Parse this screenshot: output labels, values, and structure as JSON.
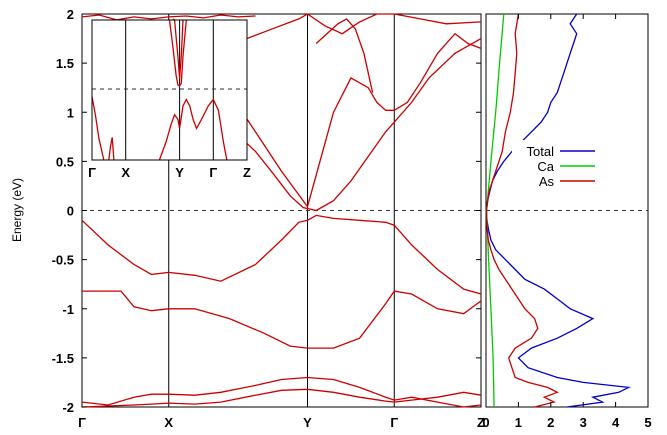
{
  "chart_data": [
    {
      "type": "line",
      "panel": "band-structure",
      "ylabel": "Energy (eV)",
      "ylim": [
        -2,
        2
      ],
      "y_ticks": [
        "-2",
        "-1.5",
        "-1",
        "-0.5",
        "0",
        "0.5",
        "1",
        "1.5",
        "2"
      ],
      "k_points": [
        {
          "label": "Γ",
          "k": 0
        },
        {
          "label": "X",
          "k": 1.0
        },
        {
          "label": "Y",
          "k": 2.6
        },
        {
          "label": "Γ",
          "k": 3.6
        },
        {
          "label": "Z",
          "k": 4.6
        }
      ],
      "fermi_level": 0,
      "grid": false,
      "line_color": "#cc0000",
      "bands": [
        {
          "name": "",
          "x": [
            0,
            0.3,
            0.6,
            0.8,
            1.0,
            1.3,
            1.6,
            2.0,
            2.3,
            2.5,
            2.6,
            2.7,
            2.9,
            3.2,
            3.5,
            3.6,
            3.8,
            4.1,
            4.4,
            4.6
          ],
          "y": [
            -0.1,
            -0.35,
            -0.55,
            -0.65,
            -0.63,
            -0.66,
            -0.72,
            -0.55,
            -0.3,
            -0.12,
            -0.1,
            -0.05,
            -0.08,
            -0.1,
            -0.12,
            -0.15,
            -0.35,
            -0.6,
            -0.8,
            -0.85
          ]
        },
        {
          "name": "",
          "x": [
            0,
            0.3,
            0.45,
            0.6,
            0.8,
            1.0,
            1.3,
            1.7,
            2.1,
            2.4,
            2.6,
            2.9,
            3.2,
            3.5,
            3.6,
            3.8,
            4.1,
            4.4,
            4.6
          ],
          "y": [
            -0.82,
            -0.82,
            -0.82,
            -0.98,
            -1.02,
            -1.0,
            -1.0,
            -1.1,
            -1.25,
            -1.38,
            -1.4,
            -1.4,
            -1.3,
            -0.95,
            -0.82,
            -0.85,
            -1.0,
            -1.05,
            -0.92
          ]
        },
        {
          "name": "",
          "x": [
            0,
            0.3,
            0.6,
            0.8,
            1.0,
            1.3,
            1.6,
            2.0,
            2.3,
            2.6,
            2.9,
            3.2,
            3.5,
            3.6,
            3.8,
            4.1,
            4.4,
            4.6
          ],
          "y": [
            -1.95,
            -1.98,
            -1.9,
            -1.87,
            -1.87,
            -1.88,
            -1.85,
            -1.78,
            -1.72,
            -1.7,
            -1.72,
            -1.8,
            -1.9,
            -1.93,
            -1.9,
            -1.95,
            -2.0,
            -1.98
          ]
        },
        {
          "name": "",
          "x": [
            0,
            0.3,
            0.6,
            0.8,
            1.0,
            1.3,
            1.6,
            2.0,
            2.3,
            2.6,
            2.9,
            3.2,
            3.5,
            3.6,
            3.8,
            4.1,
            4.4,
            4.6
          ],
          "y": [
            -2.0,
            -1.99,
            -1.98,
            -1.97,
            -1.96,
            -1.97,
            -1.95,
            -1.88,
            -1.83,
            -1.82,
            -1.85,
            -1.9,
            -1.94,
            -1.95,
            -1.93,
            -1.9,
            -1.85,
            -1.88
          ]
        },
        {
          "name": "",
          "x": [
            0.95,
            1.15,
            1.4,
            1.7,
            2.0,
            2.2,
            2.4,
            2.55,
            2.6,
            2.7,
            2.9,
            3.1,
            3.3,
            3.5,
            3.6,
            3.8,
            4.0,
            4.3,
            4.6
          ],
          "y": [
            1.6,
            1.3,
            1.1,
            0.85,
            0.6,
            0.38,
            0.15,
            0.03,
            0.02,
            0.0,
            0.1,
            0.3,
            0.55,
            0.8,
            0.9,
            1.1,
            1.35,
            1.6,
            1.75
          ]
        },
        {
          "name": "",
          "x": [
            1.05,
            1.2,
            1.4,
            1.7,
            2.0,
            2.3,
            2.6,
            2.9,
            3.1,
            3.3,
            3.4,
            3.5,
            3.6,
            3.75,
            3.9,
            4.1,
            4.3,
            4.45,
            4.6
          ],
          "y": [
            1.95,
            1.85,
            1.55,
            1.2,
            0.8,
            0.4,
            0.04,
            1.0,
            1.35,
            1.25,
            1.1,
            1.02,
            1.02,
            1.1,
            1.3,
            1.6,
            1.8,
            1.7,
            1.65
          ]
        },
        {
          "name": "",
          "x": [
            1.0,
            1.3,
            1.6,
            1.9,
            2.2,
            2.5,
            2.6,
            2.8,
            3.0,
            3.2,
            3.4,
            3.6,
            3.9,
            4.2,
            4.6
          ],
          "y": [
            1.9,
            1.78,
            1.7,
            1.75,
            1.85,
            1.95,
            2.0,
            1.88,
            1.8,
            1.92,
            2.0,
            2.0,
            1.95,
            1.9,
            1.92
          ]
        },
        {
          "name": "",
          "x": [
            0,
            0.2,
            0.4,
            0.6,
            0.8,
            1.0,
            1.2,
            1.4,
            1.6,
            1.8,
            2.0
          ],
          "y": [
            1.97,
            1.99,
            1.94,
            1.97,
            1.95,
            1.97,
            1.98,
            1.96,
            1.99,
            1.97,
            1.98
          ]
        },
        {
          "name": "",
          "x": [
            2.7,
            2.95,
            3.05,
            3.15,
            3.25,
            3.35
          ],
          "y": [
            1.7,
            1.9,
            1.95,
            1.85,
            1.6,
            1.2
          ]
        }
      ]
    },
    {
      "type": "line",
      "panel": "inset",
      "k_points": [
        {
          "label": "Γ",
          "k": 0
        },
        {
          "label": "X",
          "k": 1.0
        },
        {
          "label": "Y",
          "k": 2.6
        },
        {
          "label": "Γ",
          "k": 3.6
        },
        {
          "label": "Z",
          "k": 4.6
        }
      ],
      "ylim": [
        -0.55,
        1.0
      ],
      "fermi_level": 0,
      "line_color": "#cc0000",
      "bands": [
        {
          "name": "",
          "x": [
            0,
            0.1,
            0.2,
            0.35
          ],
          "y": [
            0.15,
            -0.05,
            -0.3,
            -0.55
          ]
        },
        {
          "name": "",
          "x": [
            0.5,
            0.55,
            0.6,
            0.65
          ],
          "y": [
            -0.55,
            -0.4,
            -0.3,
            -0.55
          ]
        },
        {
          "name": "",
          "x": [
            2.0,
            2.2,
            2.35,
            2.45,
            2.55,
            2.6,
            2.7,
            2.8,
            2.9,
            3.0,
            3.1,
            3.25,
            3.45,
            3.6,
            3.75,
            3.9,
            4.0
          ],
          "y": [
            -0.55,
            -0.35,
            -0.15,
            -0.05,
            -0.1,
            -0.2,
            0.05,
            0.12,
            0.05,
            -0.1,
            -0.2,
            -0.1,
            0.05,
            0.12,
            0.0,
            -0.35,
            -0.55
          ]
        },
        {
          "name": "",
          "x": [
            2.3,
            2.4,
            2.5,
            2.55,
            2.6,
            2.65,
            2.7,
            2.8
          ],
          "y": [
            1.0,
            0.7,
            0.38,
            0.28,
            0.27,
            0.3,
            0.6,
            1.0
          ]
        },
        {
          "name": "",
          "x": [
            2.45,
            2.5,
            2.55,
            2.6,
            2.65,
            2.7
          ],
          "y": [
            1.0,
            0.8,
            0.6,
            0.35,
            0.6,
            1.0
          ]
        }
      ]
    },
    {
      "type": "line",
      "panel": "dos",
      "xlim": [
        0,
        5
      ],
      "ylim": [
        -2,
        2
      ],
      "x_ticks": [
        "0",
        "1",
        "2",
        "3",
        "4",
        "5"
      ],
      "legend": "top-right",
      "series": [
        {
          "name": "Total",
          "color": "#0000cc",
          "y": [
            -2.0,
            -1.95,
            -1.9,
            -1.85,
            -1.8,
            -1.75,
            -1.7,
            -1.6,
            -1.5,
            -1.4,
            -1.3,
            -1.2,
            -1.1,
            -1.0,
            -0.9,
            -0.8,
            -0.7,
            -0.6,
            -0.5,
            -0.4,
            -0.3,
            -0.2,
            -0.1,
            0.0,
            0.1,
            0.2,
            0.3,
            0.4,
            0.5,
            0.6,
            0.7,
            0.8,
            0.9,
            1.0,
            1.1,
            1.2,
            1.3,
            1.4,
            1.5,
            1.6,
            1.7,
            1.8,
            1.9,
            2.0
          ],
          "x": [
            2.5,
            3.6,
            3.3,
            4.1,
            4.4,
            3.0,
            2.2,
            1.3,
            1.0,
            1.4,
            2.2,
            2.8,
            3.3,
            2.6,
            2.2,
            1.8,
            1.2,
            0.9,
            0.6,
            0.3,
            0.15,
            0.08,
            0.03,
            0.02,
            0.05,
            0.12,
            0.2,
            0.35,
            0.55,
            0.8,
            1.1,
            1.4,
            1.7,
            1.9,
            2.0,
            2.2,
            2.3,
            2.4,
            2.5,
            2.6,
            2.7,
            2.8,
            2.6,
            2.8
          ]
        },
        {
          "name": "Ca",
          "color": "#00cc00",
          "y": [
            -2.0,
            -1.5,
            -1.0,
            -0.5,
            0.0,
            0.5,
            1.0,
            1.5,
            2.0
          ],
          "x": [
            0.25,
            0.22,
            0.15,
            0.08,
            0.02,
            0.15,
            0.3,
            0.42,
            0.55
          ]
        },
        {
          "name": "As",
          "color": "#cc0000",
          "y": [
            -2.0,
            -1.95,
            -1.9,
            -1.85,
            -1.8,
            -1.75,
            -1.7,
            -1.6,
            -1.5,
            -1.4,
            -1.3,
            -1.2,
            -1.1,
            -1.0,
            -0.9,
            -0.8,
            -0.7,
            -0.6,
            -0.5,
            -0.4,
            -0.3,
            -0.2,
            -0.1,
            0.0,
            0.2,
            0.4,
            0.6,
            0.8,
            1.0,
            1.2,
            1.4,
            1.6,
            1.8,
            2.0
          ],
          "x": [
            1.5,
            2.1,
            1.8,
            2.2,
            1.9,
            1.3,
            0.9,
            0.8,
            0.7,
            0.9,
            1.4,
            1.6,
            1.5,
            1.2,
            1.0,
            0.8,
            0.6,
            0.4,
            0.25,
            0.15,
            0.07,
            0.04,
            0.02,
            0.01,
            0.1,
            0.3,
            0.5,
            0.6,
            0.75,
            0.85,
            0.9,
            0.95,
            0.9,
            1.0
          ]
        }
      ]
    }
  ]
}
